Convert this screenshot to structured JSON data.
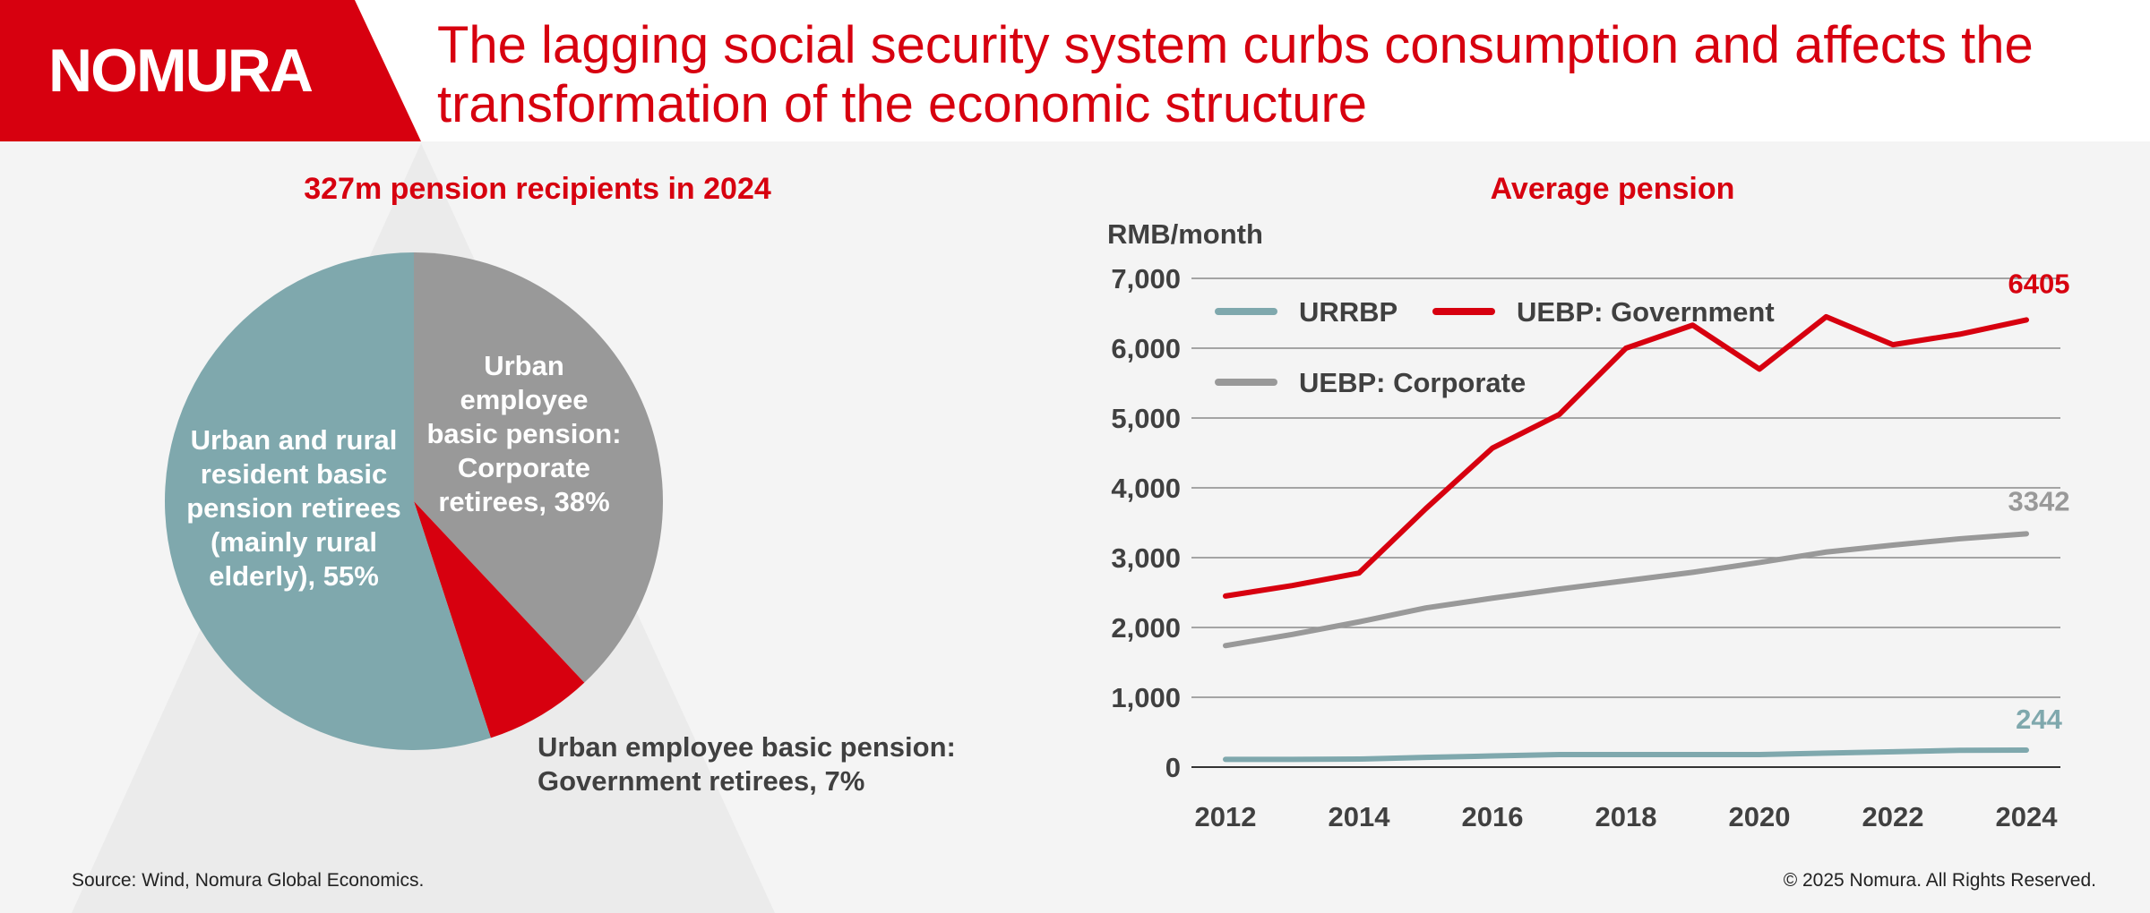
{
  "brand": {
    "logo_text": "NOMURA",
    "accent_color": "#d7000f"
  },
  "header": {
    "title": "The lagging social security system curbs consumption and affects the transformation of the economic structure"
  },
  "chart_data": [
    {
      "type": "pie",
      "title": "327m pension recipients in 2024",
      "slices": [
        {
          "name": "Urban and rural resident basic pension retirees (mainly rural elderly), 55%",
          "value": 55,
          "color": "#7fa8ad"
        },
        {
          "name": "Urban employee basic pension: Corporate retirees, 38%",
          "value": 38,
          "color": "#999999"
        },
        {
          "name": "Urban employee basic pension: Government retirees, 7%",
          "value": 7,
          "color": "#d7000f"
        }
      ]
    },
    {
      "type": "line",
      "title": "Average pension",
      "ylabel": "RMB/month",
      "ylim": [
        0,
        7000
      ],
      "yticks": [
        0,
        1000,
        2000,
        3000,
        4000,
        5000,
        6000,
        7000
      ],
      "ytick_labels": [
        "0",
        "1,000",
        "2,000",
        "3,000",
        "4,000",
        "5,000",
        "6,000",
        "7,000"
      ],
      "xlim": [
        2012,
        2024
      ],
      "xticks": [
        2012,
        2014,
        2016,
        2018,
        2020,
        2022,
        2024
      ],
      "xtick_labels": [
        "2012",
        "2014",
        "2016",
        "2018",
        "2020",
        "2022",
        "2024"
      ],
      "grid": true,
      "series": [
        {
          "name": "URRBP",
          "color": "#7fa8ad",
          "x": [
            2012,
            2013,
            2014,
            2015,
            2016,
            2017,
            2018,
            2019,
            2020,
            2021,
            2022,
            2023,
            2024
          ],
          "values": [
            110,
            110,
            115,
            140,
            160,
            180,
            180,
            180,
            180,
            200,
            220,
            240,
            244
          ],
          "end_label": "244"
        },
        {
          "name": "UEBP: Government",
          "color": "#d7000f",
          "x": [
            2012,
            2013,
            2014,
            2015,
            2016,
            2017,
            2018,
            2019,
            2020,
            2021,
            2022,
            2023,
            2024
          ],
          "values": [
            2450,
            2600,
            2780,
            3700,
            4570,
            5050,
            6000,
            6330,
            5700,
            6450,
            6050,
            6200,
            6405
          ],
          "end_label": "6405"
        },
        {
          "name": "UEBP: Corporate",
          "color": "#999999",
          "x": [
            2012,
            2013,
            2014,
            2015,
            2016,
            2017,
            2018,
            2019,
            2020,
            2021,
            2022,
            2023,
            2024
          ],
          "values": [
            1740,
            1900,
            2080,
            2280,
            2420,
            2550,
            2670,
            2790,
            2930,
            3080,
            3180,
            3270,
            3342
          ],
          "end_label": "3342"
        }
      ]
    }
  ],
  "footer": {
    "source": "Source: Wind, Nomura Global Economics.",
    "copyright": "© 2025 Nomura. All Rights Reserved."
  }
}
